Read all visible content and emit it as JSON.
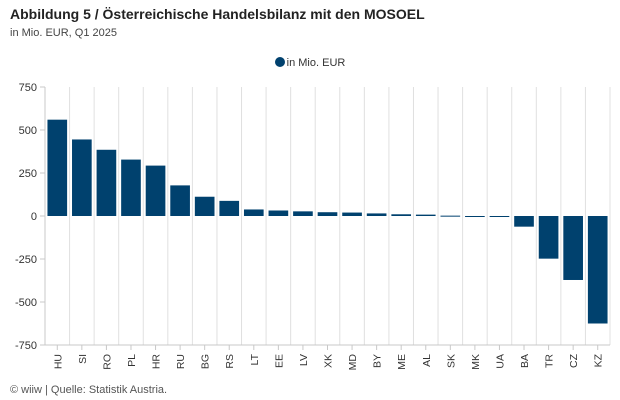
{
  "header": {
    "title": "Abbildung 5 / Österreichische Handelsbilanz mit den MOSOEL",
    "subtitle": "in Mio. EUR, Q1 2025"
  },
  "footer": {
    "source": "© wiiw | Quelle: Statistik Austria."
  },
  "colors": {
    "bar": "#00416e",
    "grid": "#e0e0e0",
    "axis": "#c8c8c8"
  },
  "chart_data": {
    "type": "bar",
    "categories": [
      "HU",
      "SI",
      "RO",
      "PL",
      "HR",
      "RU",
      "BG",
      "RS",
      "LT",
      "EE",
      "LV",
      "XK",
      "MD",
      "BY",
      "ME",
      "AL",
      "SK",
      "MK",
      "UA",
      "BA",
      "TR",
      "CZ",
      "KZ"
    ],
    "series": [
      {
        "name": "in Mio. EUR",
        "values": [
          560,
          445,
          385,
          328,
          293,
          178,
          112,
          88,
          38,
          32,
          27,
          22,
          20,
          15,
          10,
          8,
          2,
          -3,
          -5,
          -62,
          -248,
          -372,
          -625
        ]
      }
    ],
    "yticks": [
      750,
      500,
      250,
      0,
      -250,
      -500,
      -750
    ],
    "ylim": [
      -750,
      750
    ],
    "grid": "vertical",
    "legend": "top-center"
  }
}
